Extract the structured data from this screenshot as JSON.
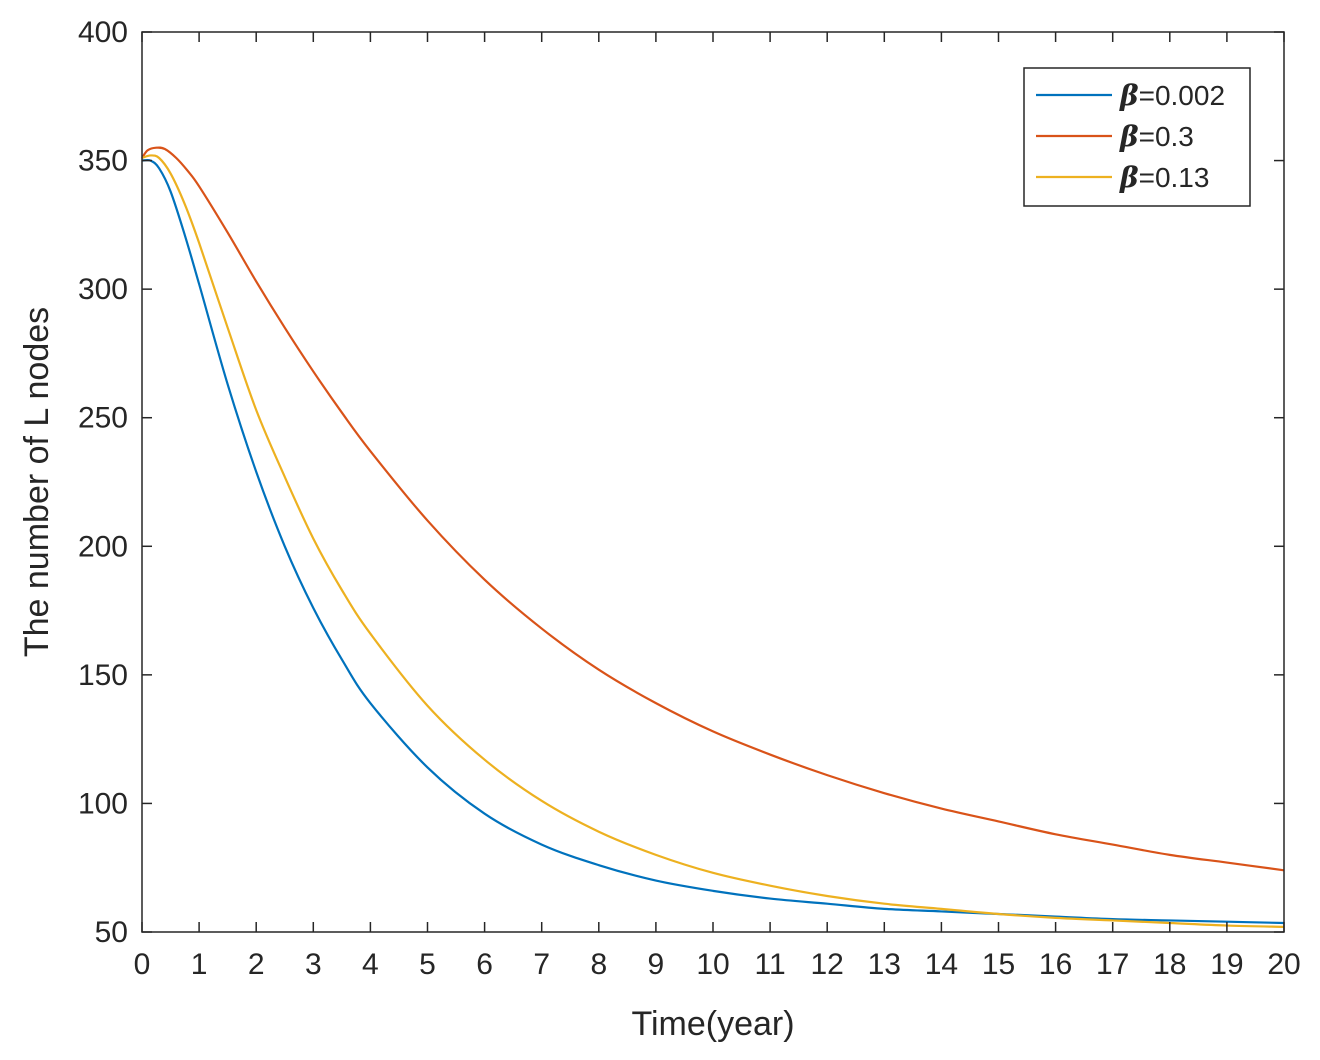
{
  "chart_data": {
    "type": "line",
    "xlabel": "Time(year)",
    "ylabel": "The number of L nodes",
    "xlim": [
      0,
      20
    ],
    "ylim": [
      50,
      400
    ],
    "xticks": [
      0,
      1,
      2,
      3,
      4,
      5,
      6,
      7,
      8,
      9,
      10,
      11,
      12,
      13,
      14,
      15,
      16,
      17,
      18,
      19,
      20
    ],
    "yticks": [
      50,
      100,
      150,
      200,
      250,
      300,
      350,
      400
    ],
    "grid": false,
    "legend_position": "top-right",
    "series": [
      {
        "name": "β=0.002",
        "legend_symbol": "β",
        "legend_value": "=0.002",
        "color": "#0072BD",
        "x": [
          0,
          0.15,
          0.3,
          0.5,
          0.75,
          1,
          1.5,
          2,
          2.5,
          3,
          3.5,
          4,
          5,
          6,
          7,
          8,
          9,
          10,
          11,
          12,
          13,
          14,
          15,
          16,
          17,
          18,
          19,
          20
        ],
        "y": [
          350,
          350,
          347,
          338,
          321,
          302,
          263,
          229,
          200,
          176,
          156,
          139,
          114,
          96,
          84,
          76,
          70,
          66,
          63,
          61,
          59,
          58,
          57,
          56,
          55,
          54.5,
          54,
          53.5
        ]
      },
      {
        "name": "β=0.3",
        "legend_symbol": "β",
        "legend_value": "=0.3",
        "color": "#D95319",
        "x": [
          0,
          0.1,
          0.25,
          0.4,
          0.6,
          0.8,
          1,
          1.5,
          2,
          2.5,
          3,
          3.5,
          4,
          5,
          6,
          7,
          8,
          9,
          10,
          11,
          12,
          13,
          14,
          15,
          16,
          17,
          18,
          19,
          20
        ],
        "y": [
          351,
          354,
          355,
          354.5,
          351,
          346,
          340,
          322,
          303,
          285,
          268,
          252,
          237,
          210,
          187,
          168,
          152,
          139,
          128,
          119,
          111,
          104,
          98,
          93,
          88,
          84,
          80,
          77,
          74
        ]
      },
      {
        "name": "β=0.13",
        "legend_symbol": "β",
        "legend_value": "=0.13",
        "color": "#EDB120",
        "x": [
          0,
          0.15,
          0.3,
          0.5,
          0.75,
          1,
          1.5,
          2,
          2.5,
          3,
          3.5,
          4,
          5,
          6,
          7,
          8,
          9,
          10,
          11,
          12,
          13,
          14,
          15,
          16,
          17,
          18,
          19,
          20
        ],
        "y": [
          351,
          352,
          351,
          345,
          333,
          318,
          285,
          253,
          227,
          203,
          183,
          166,
          138,
          117,
          101,
          89,
          80,
          73,
          68,
          64,
          61,
          59,
          57,
          55.5,
          54.5,
          53.5,
          52.5,
          52
        ]
      }
    ]
  }
}
